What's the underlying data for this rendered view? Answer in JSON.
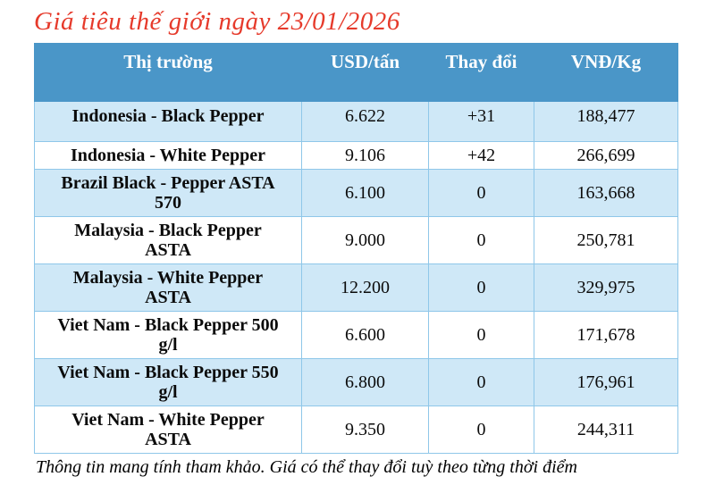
{
  "title": "Giá tiêu thế giới ngày 23/01/2026",
  "footer": "Thông tin mang tính tham khảo. Giá có thể thay đổi tuỳ theo từng thời điểm",
  "colors": {
    "title_red": "#e63a2b",
    "header_bg": "#4a96c8",
    "row_alt_bg": "#cfe8f7",
    "border": "#8fc7e9",
    "positive": "#76a456",
    "neutral": "#4a6fb8"
  },
  "table": {
    "columns": [
      "Thị trường",
      "USD/tấn",
      "Thay đổi",
      "VNĐ/Kg"
    ],
    "rows": [
      {
        "market": "Indonesia - Black Pepper",
        "usd": "6.622",
        "change": "+31",
        "change_type": "positive",
        "vnd": "188,477"
      },
      {
        "market": "Indonesia - White Pepper",
        "usd": "9.106",
        "change": "+42",
        "change_type": "positive",
        "vnd": "266,699"
      },
      {
        "market": "Brazil Black - Pepper ASTA\n570",
        "usd": "6.100",
        "change": "0",
        "change_type": "neutral",
        "vnd": "163,668"
      },
      {
        "market": "Malaysia - Black Pepper\nASTA",
        "usd": "9.000",
        "change": "0",
        "change_type": "neutral",
        "vnd": "250,781"
      },
      {
        "market": "Malaysia - White Pepper\nASTA",
        "usd": "12.200",
        "change": "0",
        "change_type": "neutral",
        "vnd": "329,975"
      },
      {
        "market": "Viet Nam - Black Pepper 500\ng/l",
        "usd": "6.600",
        "change": "0",
        "change_type": "neutral",
        "vnd": "171,678"
      },
      {
        "market": "Viet Nam - Black Pepper 550\ng/l",
        "usd": "6.800",
        "change": "0",
        "change_type": "neutral",
        "vnd": "176,961"
      },
      {
        "market": "Viet Nam - White Pepper\nASTA",
        "usd": "9.350",
        "change": "0",
        "change_type": "neutral",
        "vnd": "244,311"
      }
    ]
  }
}
